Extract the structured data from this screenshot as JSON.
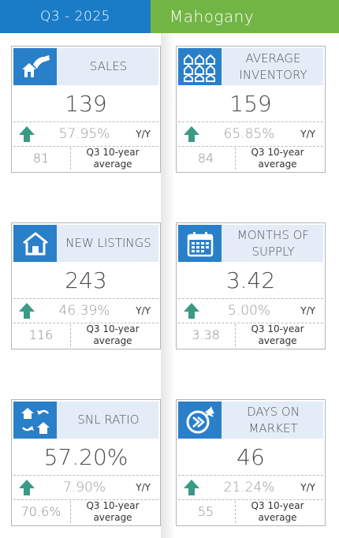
{
  "header": {
    "period": "Q3 - 2025",
    "area": "Mahogany"
  },
  "colors": {
    "header_blue": "#1a7cc7",
    "header_green": "#72b545",
    "icon_blue": "#2a7fc9",
    "arrow_green": "#3a9a86"
  },
  "cards": [
    {
      "title": "SALES",
      "icon": "house-hand-icon",
      "value": "139",
      "pct": "57.95%",
      "yy": "Y/Y",
      "avg_value": "81",
      "avg_label": "Q3 10-year average"
    },
    {
      "title": "AVERAGE INVENTORY",
      "icon": "houses-grid-icon",
      "value": "159",
      "pct": "65.85%",
      "yy": "Y/Y",
      "avg_value": "84",
      "avg_label": "Q3 10-year average"
    },
    {
      "title": "NEW LISTINGS",
      "icon": "house-icon",
      "value": "243",
      "pct": "46.39%",
      "yy": "Y/Y",
      "avg_value": "116",
      "avg_label": "Q3 10-year average"
    },
    {
      "title": "MONTHS OF SUPPLY",
      "icon": "calendar-icon",
      "value": "3.42",
      "pct": "5.00%",
      "yy": "Y/Y",
      "avg_value": "3.38",
      "avg_label": "Q3 10-year average"
    },
    {
      "title": "SNL RATIO",
      "icon": "houses-exchange-icon",
      "value": "57.20%",
      "pct": "7.90%",
      "yy": "Y/Y",
      "avg_value": "70.6%",
      "avg_label": "Q3 10-year average"
    },
    {
      "title": "DAYS ON MARKET",
      "icon": "clock-speed-icon",
      "value": "46",
      "pct": "21.24%",
      "yy": "Y/Y",
      "avg_value": "55",
      "avg_label": "Q3 10-year average"
    }
  ]
}
